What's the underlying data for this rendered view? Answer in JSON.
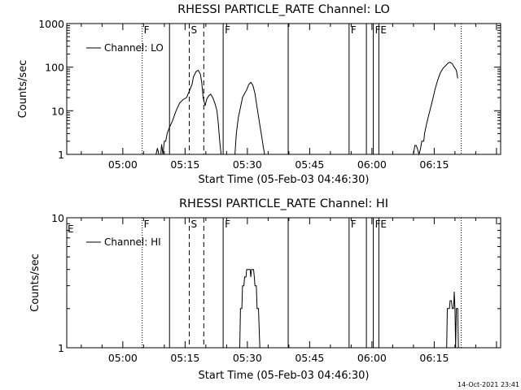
{
  "footer_timestamp": "14-Oct-2021 23:41",
  "chart_data": [
    {
      "type": "line",
      "title": "RHESSI PARTICLE_RATE Channel: LO",
      "xlabel": "Start Time (05-Feb-03 04:46:30)",
      "ylabel": "Counts/sec",
      "y_scale": "log",
      "ylim": [
        1,
        1000
      ],
      "xlim": [
        "04:46:30",
        "06:31:00"
      ],
      "x_ticks": [
        "05:00",
        "05:15",
        "05:30",
        "05:45",
        "06:00",
        "06:15"
      ],
      "y_ticks": [
        "1",
        "10",
        "100",
        "1000"
      ],
      "legend": {
        "position": "top-left",
        "entries": [
          "Channel: LO"
        ]
      },
      "series": [
        {
          "name": "Channel: LO",
          "segments": [
            [
              [
                "05:08:00",
                1
              ],
              [
                "05:08:20",
                1.4
              ],
              [
                "05:08:40",
                1
              ],
              [
                "05:09:10",
                1
              ],
              [
                "05:09:20",
                1.7
              ],
              [
                "05:09:40",
                1
              ],
              [
                "05:10:00",
                2
              ],
              [
                "05:10:20",
                2
              ],
              [
                "05:10:40",
                3
              ],
              [
                "05:11:10",
                4
              ],
              [
                "05:12:00",
                6
              ],
              [
                "05:12:50",
                10
              ],
              [
                "05:13:40",
                15
              ],
              [
                "05:14:30",
                18
              ],
              [
                "05:15:20",
                20
              ],
              [
                "05:16:00",
                28
              ],
              [
                "05:16:40",
                40
              ],
              [
                "05:17:00",
                60
              ],
              [
                "05:17:40",
                80
              ],
              [
                "05:18:10",
                85
              ],
              [
                "05:18:40",
                70
              ],
              [
                "05:19:00",
                45
              ],
              [
                "05:19:20",
                20
              ],
              [
                "05:19:50",
                13
              ],
              [
                "05:20:10",
                18
              ],
              [
                "05:20:40",
                22
              ],
              [
                "05:21:10",
                24
              ],
              [
                "05:21:40",
                20
              ],
              [
                "05:22:10",
                15
              ],
              [
                "05:22:40",
                10
              ],
              [
                "05:23:00",
                5
              ],
              [
                "05:23:20",
                2
              ],
              [
                "05:23:40",
                1
              ]
            ],
            [
              [
                "05:27:00",
                1
              ],
              [
                "05:27:20",
                3
              ],
              [
                "05:27:50",
                7
              ],
              [
                "05:28:20",
                12
              ],
              [
                "05:28:50",
                20
              ],
              [
                "05:29:20",
                25
              ],
              [
                "05:29:50",
                30
              ],
              [
                "05:30:20",
                40
              ],
              [
                "05:30:50",
                45
              ],
              [
                "05:31:20",
                38
              ],
              [
                "05:31:50",
                25
              ],
              [
                "05:32:20",
                12
              ],
              [
                "05:32:50",
                6
              ],
              [
                "05:33:20",
                3
              ],
              [
                "05:33:50",
                1.5
              ],
              [
                "05:34:10",
                1
              ]
            ],
            [
              [
                "06:10:00",
                1
              ],
              [
                "06:10:20",
                1.6
              ],
              [
                "06:10:40",
                1.6
              ],
              [
                "06:11:00",
                1.3
              ],
              [
                "06:11:20",
                1
              ],
              [
                "06:11:40",
                1.3
              ],
              [
                "06:12:00",
                2
              ],
              [
                "06:12:30",
                2
              ],
              [
                "06:12:40",
                3
              ],
              [
                "06:13:10",
                5
              ],
              [
                "06:13:50",
                9
              ],
              [
                "06:14:30",
                16
              ],
              [
                "06:15:10",
                30
              ],
              [
                "06:15:50",
                50
              ],
              [
                "06:16:30",
                75
              ],
              [
                "06:17:10",
                95
              ],
              [
                "06:17:50",
                110
              ],
              [
                "06:18:20",
                125
              ],
              [
                "06:18:50",
                130
              ],
              [
                "06:19:20",
                120
              ],
              [
                "06:19:50",
                100
              ],
              [
                "06:20:20",
                85
              ],
              [
                "06:20:40",
                55
              ]
            ]
          ]
        }
      ],
      "event_markers": [
        {
          "time": "05:04:40",
          "style": "dotted",
          "flag": "F"
        },
        {
          "time": "05:11:15",
          "style": "solid",
          "flag": ""
        },
        {
          "time": "05:16:00",
          "style": "dashed",
          "flag": "S"
        },
        {
          "time": "05:19:30",
          "style": "dashed",
          "flag": ""
        },
        {
          "time": "05:24:10",
          "style": "solid",
          "flag": "F"
        },
        {
          "time": "05:39:50",
          "style": "solid",
          "flag": ""
        },
        {
          "time": "05:54:30",
          "style": "solid",
          "flag": "F"
        },
        {
          "time": "05:58:40",
          "style": "solid",
          "flag": ""
        },
        {
          "time": "06:00:20",
          "style": "solid",
          "flag": "F"
        },
        {
          "time": "06:01:40",
          "style": "solid",
          "flag": "E"
        },
        {
          "time": "06:21:30",
          "style": "dotted",
          "flag": ""
        }
      ]
    },
    {
      "type": "line",
      "title": "RHESSI PARTICLE_RATE Channel: HI",
      "xlabel": "Start Time (05-Feb-03 04:46:30)",
      "ylabel": "Counts/sec",
      "y_scale": "log",
      "ylim": [
        1,
        10
      ],
      "xlim": [
        "04:46:30",
        "06:31:00"
      ],
      "x_ticks": [
        "05:00",
        "05:15",
        "05:30",
        "05:45",
        "06:00",
        "06:15"
      ],
      "y_ticks": [
        "1",
        "10"
      ],
      "legend": {
        "position": "top-left",
        "entries": [
          "Channel: HI"
        ]
      },
      "series": [
        {
          "name": "Channel: HI",
          "segments": [
            [
              [
                "05:28:10",
                1
              ],
              [
                "05:28:20",
                2
              ],
              [
                "05:28:40",
                2
              ],
              [
                "05:28:50",
                3
              ],
              [
                "05:29:10",
                3
              ],
              [
                "05:29:20",
                3.5
              ],
              [
                "05:29:40",
                3.5
              ],
              [
                "05:29:50",
                4
              ],
              [
                "05:30:40",
                4
              ],
              [
                "05:30:50",
                3.5
              ],
              [
                "05:31:00",
                4
              ],
              [
                "05:31:30",
                4
              ],
              [
                "05:31:40",
                3.5
              ],
              [
                "05:31:50",
                3
              ],
              [
                "05:32:10",
                3
              ],
              [
                "05:32:20",
                2
              ],
              [
                "05:32:40",
                2
              ],
              [
                "05:33:00",
                1
              ]
            ],
            [
              [
                "06:18:00",
                1
              ],
              [
                "06:18:10",
                2
              ],
              [
                "06:18:40",
                2
              ],
              [
                "06:18:50",
                2.3
              ],
              [
                "06:19:10",
                2.3
              ],
              [
                "06:19:20",
                2
              ],
              [
                "06:19:40",
                2
              ],
              [
                "06:19:50",
                2.7
              ],
              [
                "06:20:00",
                2
              ],
              [
                "06:20:10",
                1
              ],
              [
                "06:20:20",
                2
              ],
              [
                "06:20:40",
                2
              ],
              [
                "06:20:50",
                1
              ]
            ]
          ]
        }
      ],
      "event_markers": [
        {
          "time": "05:04:40",
          "style": "dotted",
          "flag": "F"
        },
        {
          "time": "05:11:15",
          "style": "solid",
          "flag": ""
        },
        {
          "time": "05:16:00",
          "style": "dashed",
          "flag": "S"
        },
        {
          "time": "05:19:30",
          "style": "dashed",
          "flag": ""
        },
        {
          "time": "05:24:10",
          "style": "solid",
          "flag": "F"
        },
        {
          "time": "05:39:50",
          "style": "solid",
          "flag": ""
        },
        {
          "time": "05:54:30",
          "style": "solid",
          "flag": "F"
        },
        {
          "time": "05:58:40",
          "style": "solid",
          "flag": ""
        },
        {
          "time": "06:00:20",
          "style": "solid",
          "flag": "F"
        },
        {
          "time": "06:01:40",
          "style": "solid",
          "flag": "E"
        },
        {
          "time": "06:21:30",
          "style": "dotted",
          "flag": ""
        }
      ],
      "edge_flags": [
        {
          "time": "04:46:30",
          "flag": "E"
        }
      ]
    }
  ]
}
